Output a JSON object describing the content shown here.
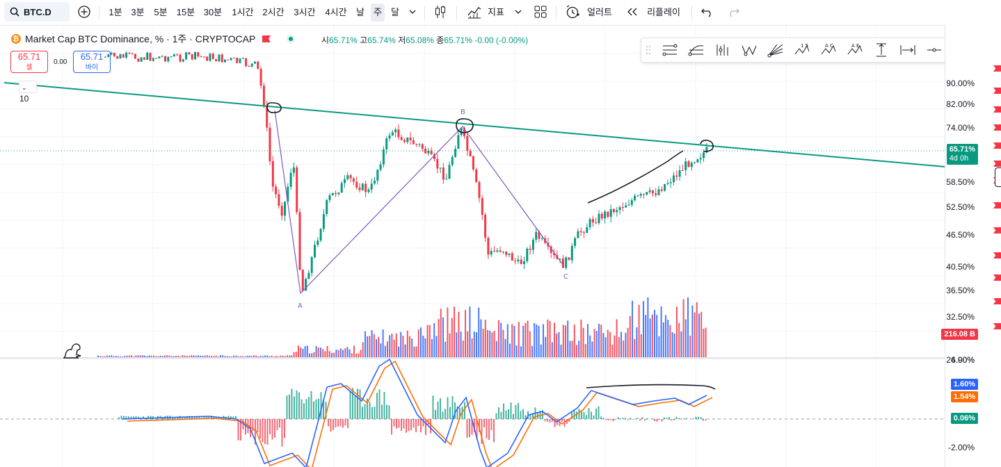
{
  "toolbar": {
    "symbol": "BTC.D",
    "intervals": [
      "1분",
      "3분",
      "5분",
      "15분",
      "30분",
      "1시간",
      "2시간",
      "3시간",
      "4시간",
      "날",
      "주",
      "달"
    ],
    "active_interval": "주",
    "indicators_label": "지표",
    "alert_label": "얼러트",
    "replay_label": "리플레이"
  },
  "legend": {
    "title": "Market Cap BTC Dominance, % · 1주 · CRYPTOCAP",
    "open_k": "시",
    "open": "65.71%",
    "high_k": "고",
    "high": "65.74%",
    "low_k": "저",
    "low": "65.08%",
    "close_k": "종",
    "close": "65.71%",
    "change": "-0.00 (-0.00%)"
  },
  "trade": {
    "sell_price": "65.71",
    "sell_label": "셀",
    "spread": "0.00",
    "buy_price": "65.71",
    "buy_label": "바이"
  },
  "collapse_count": "10",
  "price_axis": {
    "ticks": [
      "90.00%",
      "82.00%",
      "74.00%",
      "58.50%",
      "52.50%",
      "46.50%",
      "40.50%",
      "36.50%",
      "32.50%",
      "26.90%"
    ],
    "current": "65.71%",
    "countdown": "4d 0h",
    "volume": "216.08 B"
  },
  "osc_axis": {
    "ticks": [
      "4.00%",
      "-2.00%"
    ],
    "macd": "1.60%",
    "signal": "1.54%",
    "hist": "0.06%"
  },
  "pattern_labels": [
    "A",
    "B",
    "C"
  ],
  "colors": {
    "up": "#089981",
    "down": "#f23645",
    "trendline": "#089981",
    "zigzag": "#7e57c2",
    "macd": "#2962ff",
    "signal": "#ff6d00",
    "vol_up": "#2962ff",
    "vol_down": "#f23645"
  },
  "icons": [
    "search-icon",
    "plus-circle-icon",
    "candles-icon",
    "indicators-icon",
    "layout-icon",
    "alert-icon",
    "replay-icon",
    "undo-icon",
    "redo-icon",
    "chevron-down-icon"
  ]
}
